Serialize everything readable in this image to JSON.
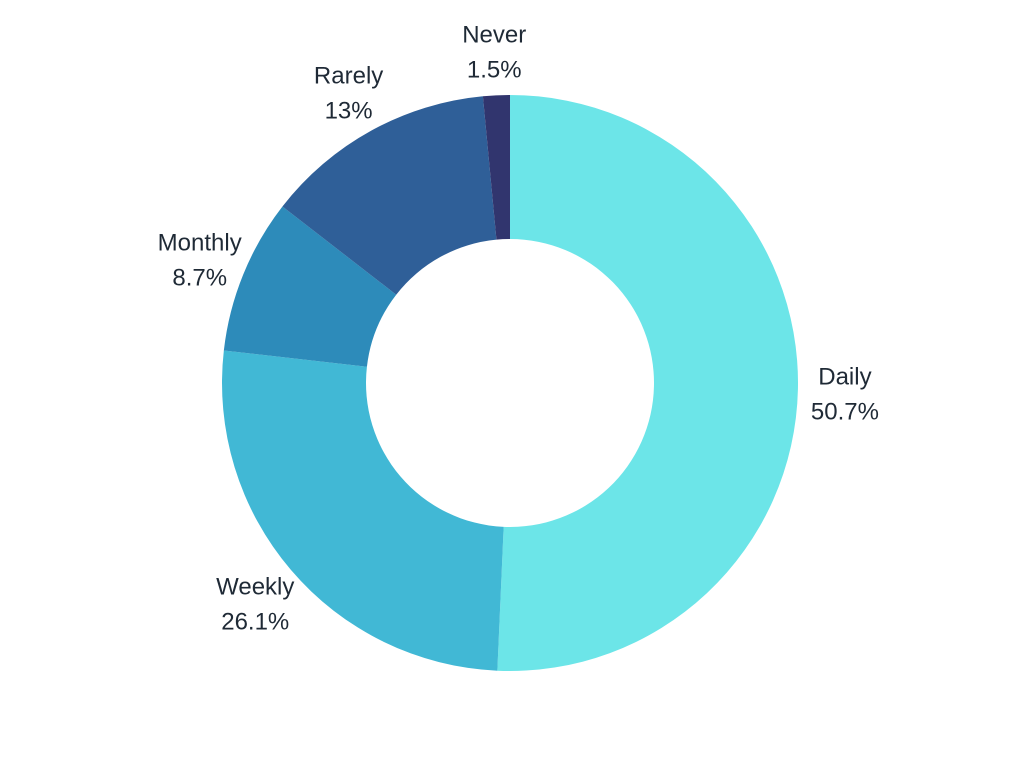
{
  "chart_data": {
    "type": "pie",
    "variant": "donut",
    "title": "",
    "legend": "none",
    "slices": [
      {
        "label": "Daily",
        "percent_label": "50.7%",
        "value": 50.7,
        "color": "#6ce5e8"
      },
      {
        "label": "Weekly",
        "percent_label": "26.1%",
        "value": 26.1,
        "color": "#41b8d5"
      },
      {
        "label": "Monthly",
        "percent_label": "8.7%",
        "value": 8.7,
        "color": "#2d8bba"
      },
      {
        "label": "Rarely",
        "percent_label": "13%",
        "value": 13.0,
        "color": "#2f5f98"
      },
      {
        "label": "Never",
        "percent_label": "1.5%",
        "value": 1.5,
        "color": "#31356e"
      }
    ]
  }
}
